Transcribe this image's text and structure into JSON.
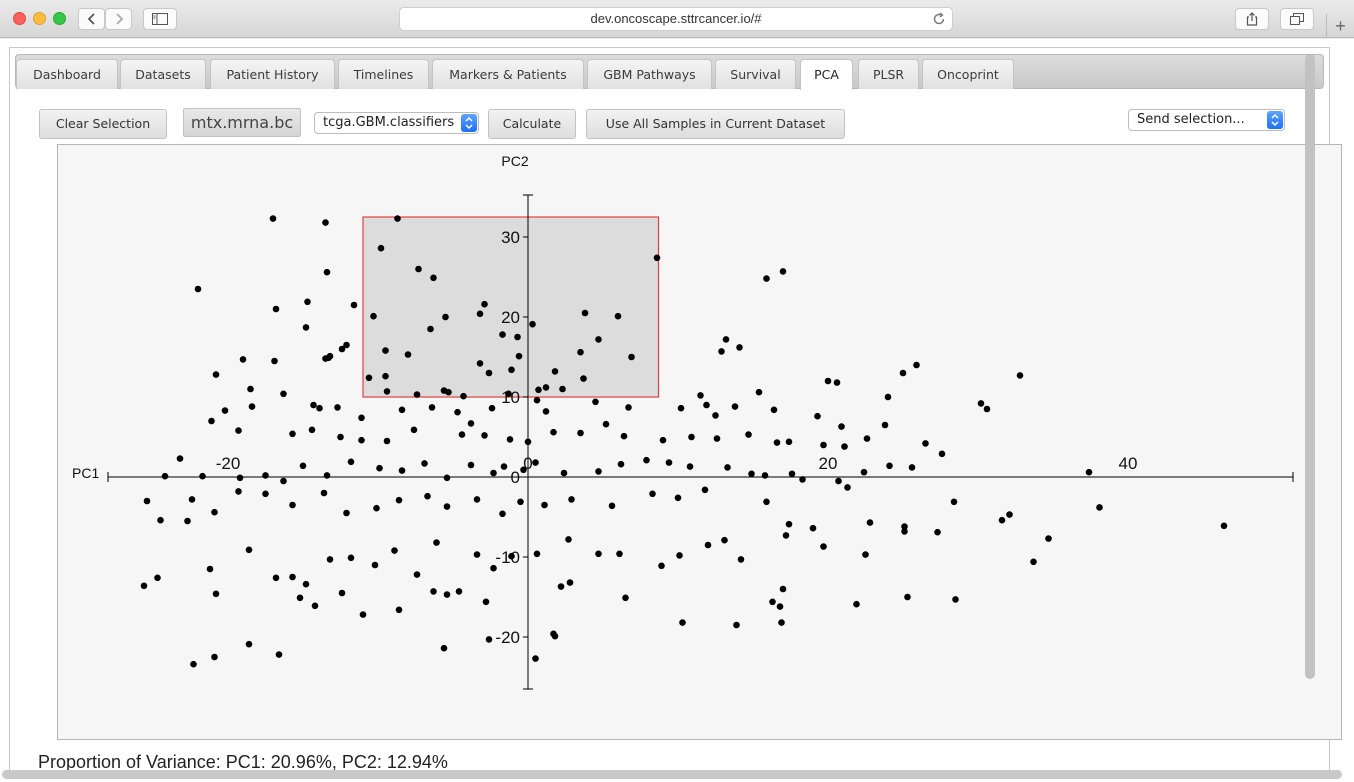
{
  "browser": {
    "url": "dev.oncoscape.sttrcancer.io/#"
  },
  "tabs": [
    {
      "label": "Dashboard",
      "active": false
    },
    {
      "label": "Datasets",
      "active": false
    },
    {
      "label": "Patient History",
      "active": false
    },
    {
      "label": "Timelines",
      "active": false
    },
    {
      "label": "Markers & Patients",
      "active": false
    },
    {
      "label": "GBM Pathways",
      "active": false
    },
    {
      "label": "Survival",
      "active": false
    },
    {
      "label": "PCA",
      "active": true
    },
    {
      "label": "PLSR",
      "active": false
    },
    {
      "label": "Oncoprint",
      "active": false
    }
  ],
  "toolbar": {
    "clear_label": "Clear Selection",
    "dataset_label": "mtx.mrna.bc",
    "classifier_value": "tcga.GBM.classifiers",
    "calculate_label": "Calculate",
    "use_all_label": "Use All Samples in Current Dataset",
    "send_value": "Send selection..."
  },
  "variance_text": "Proportion of Variance: PC1: 20.96%, PC2: 12.94%",
  "colors": {
    "point": "#000000",
    "selection_fill": "#dcdcdc",
    "selection_stroke": "#e0413c",
    "axis": "#000000",
    "accent": "#2a7cf5"
  },
  "chart_data": {
    "type": "scatter",
    "xlabel": "PC1",
    "ylabel": "PC2",
    "xlim": [
      -28,
      51
    ],
    "ylim": [
      -26,
      35
    ],
    "x_ticks": [
      -20,
      0,
      20,
      40
    ],
    "y_ticks": [
      -20,
      -10,
      0,
      10,
      20,
      30
    ],
    "x_tick_labels": [
      "-20",
      "0",
      "20",
      "40"
    ],
    "y_tick_labels": [
      "-20",
      "-10",
      "0",
      "10",
      "20",
      "30"
    ],
    "grid": false,
    "selection": {
      "x": [
        -11,
        8.7
      ],
      "y": [
        10,
        32.5
      ]
    },
    "points": [
      [
        -17,
        32.3
      ],
      [
        -13.5,
        31.8
      ],
      [
        -22,
        23.5
      ],
      [
        -13.4,
        25.6
      ],
      [
        -8.7,
        32.3
      ],
      [
        -9.8,
        28.6
      ],
      [
        -7.3,
        26
      ],
      [
        -6.3,
        24.9
      ],
      [
        -16.8,
        21
      ],
      [
        -14.7,
        21.9
      ],
      [
        -11.6,
        21.5
      ],
      [
        -2.9,
        21.6
      ],
      [
        -3.2,
        20.4
      ],
      [
        -5.5,
        20
      ],
      [
        -6.5,
        18.5
      ],
      [
        0.3,
        19.1
      ],
      [
        3.8,
        20.5
      ],
      [
        6,
        20.1
      ],
      [
        4.7,
        17.2
      ],
      [
        -1.7,
        17.8
      ],
      [
        -14.8,
        18.7
      ],
      [
        -10.3,
        20.1
      ],
      [
        -9.5,
        15.8
      ],
      [
        -8,
        15.3
      ],
      [
        -13.2,
        15.1
      ],
      [
        -13.3,
        14.9
      ],
      [
        -12.1,
        16.5
      ],
      [
        -19,
        14.7
      ],
      [
        -20.8,
        12.8
      ],
      [
        -16.9,
        14.5
      ],
      [
        -13.5,
        14.8
      ],
      [
        -12.4,
        16
      ],
      [
        -3.2,
        14.2
      ],
      [
        -2.6,
        13
      ],
      [
        -1.1,
        13.4
      ],
      [
        -0.7,
        17.5
      ],
      [
        -0.6,
        15.1
      ],
      [
        3.5,
        15.6
      ],
      [
        6.9,
        15
      ],
      [
        8.6,
        27.4
      ],
      [
        -10.6,
        12.4
      ],
      [
        -9.4,
        10.7
      ],
      [
        -9.5,
        12.6
      ],
      [
        -7.4,
        10.3
      ],
      [
        -5.6,
        10.8
      ],
      [
        -5.3,
        10.6
      ],
      [
        -4.3,
        10.1
      ],
      [
        -1.3,
        10.4
      ],
      [
        0.7,
        10.9
      ],
      [
        1.2,
        11.2
      ],
      [
        2.3,
        11
      ],
      [
        3.7,
        12.3
      ],
      [
        1.8,
        13.2
      ],
      [
        11.5,
        10.2
      ],
      [
        13.2,
        17.2
      ],
      [
        12.9,
        15.7
      ],
      [
        14.1,
        16.2
      ],
      [
        15.9,
        24.8
      ],
      [
        17,
        25.7
      ],
      [
        15.4,
        10.6
      ],
      [
        20,
        12
      ],
      [
        20.6,
        11.8
      ],
      [
        24,
        10
      ],
      [
        25,
        13
      ],
      [
        25.9,
        14
      ],
      [
        30.2,
        9.2
      ],
      [
        30.6,
        8.5
      ],
      [
        32.8,
        12.7
      ],
      [
        -20.2,
        8.3
      ],
      [
        -18.5,
        11
      ],
      [
        -18.4,
        8.8
      ],
      [
        -16.3,
        10.4
      ],
      [
        -14.3,
        9
      ],
      [
        -13.9,
        8.6
      ],
      [
        -12.7,
        8.7
      ],
      [
        -11.1,
        7.4
      ],
      [
        -8.4,
        8.4
      ],
      [
        -6.4,
        8.7
      ],
      [
        -4.7,
        8.1
      ],
      [
        -3.8,
        6.7
      ],
      [
        -2.4,
        8.6
      ],
      [
        0.6,
        9.6
      ],
      [
        1.2,
        8.2
      ],
      [
        4.5,
        9.4
      ],
      [
        6.7,
        8.7
      ],
      [
        5.2,
        6.6
      ],
      [
        10.2,
        8.6
      ],
      [
        11.9,
        9
      ],
      [
        12.5,
        7.7
      ],
      [
        13.8,
        8.8
      ],
      [
        16.4,
        8.4
      ],
      [
        19.3,
        7.6
      ],
      [
        20.9,
        6.3
      ],
      [
        23.8,
        6.5
      ],
      [
        22.6,
        4.8
      ],
      [
        26.5,
        4.2
      ],
      [
        27.6,
        2.9
      ],
      [
        -21.1,
        7
      ],
      [
        -19.3,
        5.8
      ],
      [
        -15.7,
        5.4
      ],
      [
        -14.4,
        5.9
      ],
      [
        -12.5,
        5
      ],
      [
        -11.1,
        4.6
      ],
      [
        -9.4,
        4.5
      ],
      [
        -7.6,
        5.9
      ],
      [
        -4.4,
        5.3
      ],
      [
        -2.9,
        5.2
      ],
      [
        -1.2,
        4.7
      ],
      [
        0,
        4.4
      ],
      [
        1.7,
        5.6
      ],
      [
        3.5,
        5.5
      ],
      [
        6.4,
        5.1
      ],
      [
        9,
        4.6
      ],
      [
        10.9,
        5
      ],
      [
        12.6,
        4.8
      ],
      [
        14.7,
        5.3
      ],
      [
        16.6,
        4.3
      ],
      [
        17.4,
        4.4
      ],
      [
        19.7,
        4
      ],
      [
        21.1,
        3.8
      ],
      [
        22.4,
        0.6
      ],
      [
        24.1,
        1.4
      ],
      [
        25.6,
        1.2
      ],
      [
        -23.2,
        2.3
      ],
      [
        -21.7,
        0.1
      ],
      [
        -19.2,
        -0.1
      ],
      [
        -17.5,
        0.2
      ],
      [
        -16.3,
        -0.5
      ],
      [
        -15,
        1.4
      ],
      [
        -13.4,
        0.2
      ],
      [
        -11.8,
        1.9
      ],
      [
        -9.9,
        1.1
      ],
      [
        -8.4,
        0.8
      ],
      [
        -6.9,
        1.7
      ],
      [
        -5.4,
        -0.1
      ],
      [
        -3.8,
        1.5
      ],
      [
        -2.3,
        0.5
      ],
      [
        -1.6,
        1.3
      ],
      [
        -0.3,
        0.9
      ],
      [
        0.5,
        1.8
      ],
      [
        2.4,
        0.5
      ],
      [
        4.7,
        0.7
      ],
      [
        6.2,
        1.6
      ],
      [
        7.9,
        2.1
      ],
      [
        9.4,
        1.8
      ],
      [
        10.8,
        1.3
      ],
      [
        13.3,
        1.2
      ],
      [
        14.9,
        0.4
      ],
      [
        15.8,
        0.2
      ],
      [
        17.6,
        0.4
      ],
      [
        18.3,
        -0.3
      ],
      [
        20.7,
        -0.5
      ],
      [
        21.3,
        -1.3
      ],
      [
        -24.2,
        0.1
      ],
      [
        -22.4,
        -2.8
      ],
      [
        -20.9,
        -4.4
      ],
      [
        -19.3,
        -1.8
      ],
      [
        -17.5,
        -2.1
      ],
      [
        -15.7,
        -3.5
      ],
      [
        -13.6,
        -2
      ],
      [
        -12.1,
        -4.5
      ],
      [
        -10.1,
        -3.9
      ],
      [
        -8.6,
        -2.9
      ],
      [
        -6.7,
        -2.4
      ],
      [
        -5.4,
        -3.7
      ],
      [
        -3.4,
        -2.8
      ],
      [
        -1.7,
        -4.6
      ],
      [
        -0.5,
        -3.1
      ],
      [
        1.1,
        -3.5
      ],
      [
        2.9,
        -2.8
      ],
      [
        5.6,
        -3.6
      ],
      [
        8.3,
        -2.1
      ],
      [
        10,
        -2.6
      ],
      [
        11.8,
        -1.6
      ],
      [
        15.9,
        -3.1
      ],
      [
        17.4,
        -5.9
      ],
      [
        19,
        -6.4
      ],
      [
        22.8,
        -5.7
      ],
      [
        25.1,
        -6.2
      ],
      [
        27.3,
        -6.9
      ],
      [
        28.4,
        -3.1
      ],
      [
        31.6,
        -5.4
      ],
      [
        32.1,
        -4.7
      ],
      [
        37.4,
        0.6
      ],
      [
        38.1,
        -3.8
      ],
      [
        46.4,
        -6.1
      ],
      [
        33.7,
        -10.6
      ],
      [
        34.7,
        -7.7
      ],
      [
        -25.4,
        -3
      ],
      [
        -24.5,
        -5.4
      ],
      [
        -22.7,
        -5.5
      ],
      [
        -21.2,
        -11.5
      ],
      [
        -20.8,
        -14.6
      ],
      [
        -18.6,
        -9.1
      ],
      [
        -16.8,
        -12.6
      ],
      [
        -15.7,
        -12.5
      ],
      [
        -14.8,
        -13.4
      ],
      [
        -13.2,
        -10.3
      ],
      [
        -11.8,
        -10.1
      ],
      [
        -10.2,
        -11
      ],
      [
        -8.9,
        -9.2
      ],
      [
        -7.4,
        -12.2
      ],
      [
        -6.1,
        -8.2
      ],
      [
        -4.6,
        -14.3
      ],
      [
        -3.4,
        -9.7
      ],
      [
        -2.3,
        -11.4
      ],
      [
        -1.1,
        -9.9
      ],
      [
        0.6,
        -9.6
      ],
      [
        2.7,
        -7.8
      ],
      [
        4.7,
        -9.6
      ],
      [
        6.1,
        -9.6
      ],
      [
        8.9,
        -11.1
      ],
      [
        10.1,
        -9.8
      ],
      [
        12,
        -8.5
      ],
      [
        13.1,
        -7.9
      ],
      [
        14.2,
        -10.3
      ],
      [
        17.2,
        -7.3
      ],
      [
        19.7,
        -8.7
      ],
      [
        22.5,
        -9.7
      ],
      [
        25.1,
        -6.8
      ],
      [
        -25.6,
        -13.6
      ],
      [
        -24.7,
        -12.6
      ],
      [
        -22.3,
        -23.4
      ],
      [
        -20.9,
        -22.5
      ],
      [
        -18.6,
        -20.9
      ],
      [
        -16.6,
        -22.2
      ],
      [
        -15.2,
        -15.1
      ],
      [
        -14.2,
        -16.1
      ],
      [
        -12.4,
        -14.5
      ],
      [
        -11,
        -17.2
      ],
      [
        -8.6,
        -16.6
      ],
      [
        -6.3,
        -14.3
      ],
      [
        -5.4,
        -14.7
      ],
      [
        -2.8,
        -15.6
      ],
      [
        -2.6,
        -20.3
      ],
      [
        -5.6,
        -21.4
      ],
      [
        1.7,
        -19.6
      ],
      [
        2.8,
        -13.2
      ],
      [
        2.2,
        -13.7
      ],
      [
        6.5,
        -15.1
      ],
      [
        10.3,
        -18.2
      ],
      [
        13.9,
        -18.5
      ],
      [
        16.3,
        -15.6
      ],
      [
        16.8,
        -16.2
      ],
      [
        17,
        -14
      ],
      [
        16.9,
        -18.2
      ],
      [
        21.9,
        -15.9
      ],
      [
        25.3,
        -15
      ],
      [
        28.5,
        -15.3
      ],
      [
        0.5,
        -22.7
      ],
      [
        1.8,
        -19.9
      ]
    ]
  }
}
